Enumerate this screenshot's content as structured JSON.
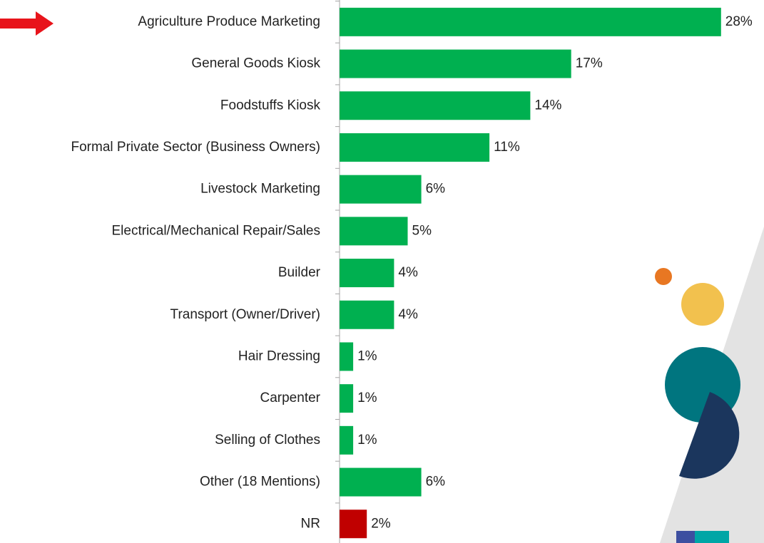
{
  "chart_data": {
    "type": "bar",
    "orientation": "horizontal",
    "categories": [
      "Agriculture Produce Marketing",
      "General Goods Kiosk",
      "Foodstuffs Kiosk",
      "Formal Private Sector (Business Owners)",
      "Livestock Marketing",
      "Electrical/Mechanical Repair/Sales",
      "Builder",
      "Transport (Owner/Driver)",
      "Hair Dressing",
      "Carpenter",
      "Selling of Clothes",
      "Other (18 Mentions)",
      "NR"
    ],
    "values": [
      28,
      17,
      14,
      11,
      6,
      5,
      4,
      4,
      1,
      1,
      1,
      6,
      2
    ],
    "value_labels": [
      "28%",
      "17%",
      "14%",
      "11%",
      "6%",
      "5%",
      "4%",
      "4%",
      "1%",
      "1%",
      "1%",
      "6%",
      "2%"
    ],
    "colors": [
      "#00b050",
      "#00b050",
      "#00b050",
      "#00b050",
      "#00b050",
      "#00b050",
      "#00b050",
      "#00b050",
      "#00b050",
      "#00b050",
      "#00b050",
      "#00b050",
      "#c00000"
    ]
  }
}
